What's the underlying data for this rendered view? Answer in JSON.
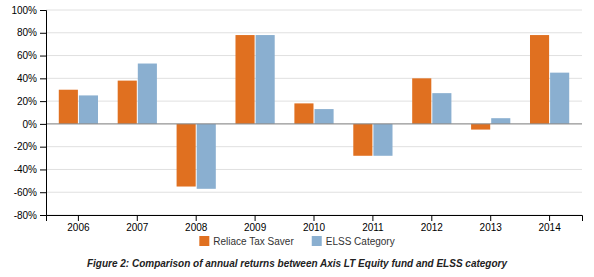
{
  "chart_data": {
    "type": "bar",
    "title": "Figure 2: Comparison of annual returns between Axis LT Equity fund and ELSS category",
    "categories": [
      "2006",
      "2007",
      "2008",
      "2009",
      "2010",
      "2011",
      "2012",
      "2013",
      "2014"
    ],
    "series": [
      {
        "name": "Reliace Tax Saver",
        "color": "#E07020",
        "values": [
          30,
          38,
          -55,
          78,
          18,
          -28,
          40,
          -5,
          78
        ]
      },
      {
        "name": "ELSS Category",
        "color": "#8AAFD0",
        "values": [
          25,
          53,
          -57,
          78,
          13,
          -28,
          27,
          5,
          45
        ]
      }
    ],
    "ylim": [
      -80,
      100
    ],
    "yticks": [
      {
        "value": -80,
        "label": "-80%"
      },
      {
        "value": -60,
        "label": "-60%"
      },
      {
        "value": -40,
        "label": "-40%"
      },
      {
        "value": -20,
        "label": "-20%"
      },
      {
        "value": 0,
        "label": "0%"
      },
      {
        "value": 20,
        "label": "20%"
      },
      {
        "value": 40,
        "label": "40%"
      },
      {
        "value": 60,
        "label": "60%"
      },
      {
        "value": 80,
        "label": "80%"
      },
      {
        "value": 100,
        "label": "100%"
      }
    ],
    "grid": true,
    "legend": "bottom"
  }
}
